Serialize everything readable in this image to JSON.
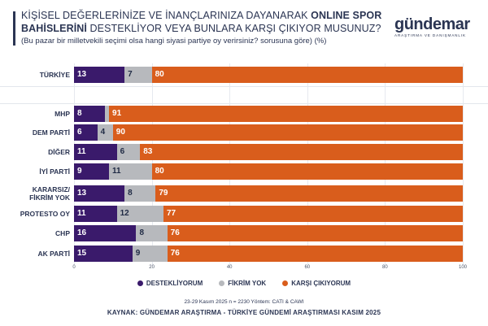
{
  "header": {
    "title_line1_part1": "KİŞİSEL DEĞERLERİNİZE VE İNANÇLARINIZA DAYANARAK ",
    "title_line1_bold": "ONLINE SPOR",
    "title_line2_bold": "BAHİSLERİNİ",
    "title_line2_part2": " DESTEKLİYOR VEYA BUNLARA KARŞI ÇIKIYOR MUSUNUZ?",
    "subtitle": "(Bu pazar bir milletvekili seçimi olsa hangi siyasi partiye oy verirsiniz? sorusuna göre) (%)"
  },
  "logo": {
    "word": "gündemar",
    "tagline": "ARAŞTIRMA VE DANIŞMANLIK"
  },
  "colors": {
    "destek": "#3a1a6b",
    "fikrim_yok": "#b7b9bd",
    "karsi": "#d95d1c"
  },
  "chart_data": {
    "type": "bar",
    "orientation": "horizontal",
    "stacked": true,
    "categories": [
      "TÜRKİYE",
      "MHP",
      "DEM PARTİ",
      "DİĞER",
      "İYİ PARTİ",
      "KARARSIZ/\nFİKRİM YOK",
      "PROTESTO OY",
      "CHP",
      "AK PARTİ"
    ],
    "series": [
      {
        "name": "DESTEKLİYORUM",
        "values": [
          13,
          8,
          6,
          11,
          9,
          13,
          11,
          16,
          15
        ]
      },
      {
        "name": "FİKRİM YOK",
        "values": [
          7,
          1,
          4,
          6,
          11,
          8,
          12,
          8,
          9
        ]
      },
      {
        "name": "KARŞI ÇIKIYORUM",
        "values": [
          80,
          91,
          90,
          83,
          80,
          79,
          77,
          76,
          76
        ]
      }
    ],
    "data_labels": [
      [
        "13",
        "7",
        "80"
      ],
      [
        "8",
        "",
        "91"
      ],
      [
        "6",
        "4",
        "90"
      ],
      [
        "11",
        "6",
        "83"
      ],
      [
        "9",
        "11",
        "80"
      ],
      [
        "13",
        "8",
        "79"
      ],
      [
        "11",
        "12",
        "77"
      ],
      [
        "16",
        "8",
        "76"
      ],
      [
        "15",
        "9",
        "76"
      ]
    ],
    "xlim": [
      0,
      100
    ],
    "xticks": [
      "0",
      "20",
      "40",
      "60",
      "80",
      "100"
    ],
    "legend_position": "bottom"
  },
  "legend": [
    {
      "label": "DESTEKLİYORUM",
      "color": "#3a1a6b"
    },
    {
      "label": "FİKRİM YOK",
      "color": "#b7b9bd"
    },
    {
      "label": "KARŞI ÇIKIYORUM",
      "color": "#d95d1c"
    }
  ],
  "footer": {
    "footnote": "23-29 Kasım 2025 n = 2230 Yöntem: CATI & CAWI",
    "source": "KAYNAK: GÜNDEMAR ARAŞTIRMA - TÜRKİYE GÜNDEMİ ARAŞTIRMASI KASIM 2025"
  }
}
